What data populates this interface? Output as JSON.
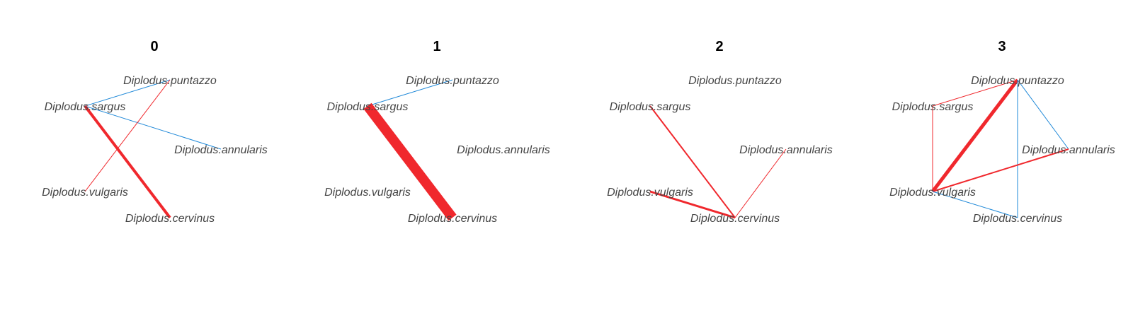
{
  "colors": {
    "positive": "#F0282D",
    "negative": "#1E88D8",
    "label": "#444444",
    "title": "#000000"
  },
  "panels": [
    {
      "title": "0",
      "nodes": [
        "Diplodus.sargus",
        "Diplodus.puntazzo",
        "Diplodus.annularis",
        "Diplodus.vulgaris",
        "Diplodus.cervinus"
      ],
      "edges": [
        {
          "from": "Diplodus.sargus",
          "to": "Diplodus.puntazzo",
          "sign": "negative",
          "weight": 1
        },
        {
          "from": "Diplodus.sargus",
          "to": "Diplodus.annularis",
          "sign": "negative",
          "weight": 1
        },
        {
          "from": "Diplodus.sargus",
          "to": "Diplodus.cervinus",
          "sign": "positive",
          "weight": 4
        },
        {
          "from": "Diplodus.puntazzo",
          "to": "Diplodus.vulgaris",
          "sign": "positive",
          "weight": 1
        }
      ]
    },
    {
      "title": "1",
      "nodes": [
        "Diplodus.sargus",
        "Diplodus.puntazzo",
        "Diplodus.annularis",
        "Diplodus.vulgaris",
        "Diplodus.cervinus"
      ],
      "edges": [
        {
          "from": "Diplodus.sargus",
          "to": "Diplodus.puntazzo",
          "sign": "negative",
          "weight": 1
        },
        {
          "from": "Diplodus.sargus",
          "to": "Diplodus.cervinus",
          "sign": "positive",
          "weight": 14
        }
      ]
    },
    {
      "title": "2",
      "nodes": [
        "Diplodus.sargus",
        "Diplodus.puntazzo",
        "Diplodus.annularis",
        "Diplodus.vulgaris",
        "Diplodus.cervinus"
      ],
      "edges": [
        {
          "from": "Diplodus.sargus",
          "to": "Diplodus.cervinus",
          "sign": "positive",
          "weight": 2
        },
        {
          "from": "Diplodus.vulgaris",
          "to": "Diplodus.cervinus",
          "sign": "positive",
          "weight": 3
        },
        {
          "from": "Diplodus.annularis",
          "to": "Diplodus.cervinus",
          "sign": "positive",
          "weight": 1
        }
      ]
    },
    {
      "title": "3",
      "nodes": [
        "Diplodus.sargus",
        "Diplodus.puntazzo",
        "Diplodus.annularis",
        "Diplodus.vulgaris",
        "Diplodus.cervinus"
      ],
      "edges": [
        {
          "from": "Diplodus.sargus",
          "to": "Diplodus.puntazzo",
          "sign": "positive",
          "weight": 1
        },
        {
          "from": "Diplodus.sargus",
          "to": "Diplodus.vulgaris",
          "sign": "positive",
          "weight": 1
        },
        {
          "from": "Diplodus.puntazzo",
          "to": "Diplodus.vulgaris",
          "sign": "positive",
          "weight": 5
        },
        {
          "from": "Diplodus.puntazzo",
          "to": "Diplodus.annularis",
          "sign": "negative",
          "weight": 1
        },
        {
          "from": "Diplodus.puntazzo",
          "to": "Diplodus.cervinus",
          "sign": "negative",
          "weight": 1
        },
        {
          "from": "Diplodus.vulgaris",
          "to": "Diplodus.annularis",
          "sign": "positive",
          "weight": 2
        },
        {
          "from": "Diplodus.vulgaris",
          "to": "Diplodus.cervinus",
          "sign": "negative",
          "weight": 1
        }
      ]
    }
  ]
}
